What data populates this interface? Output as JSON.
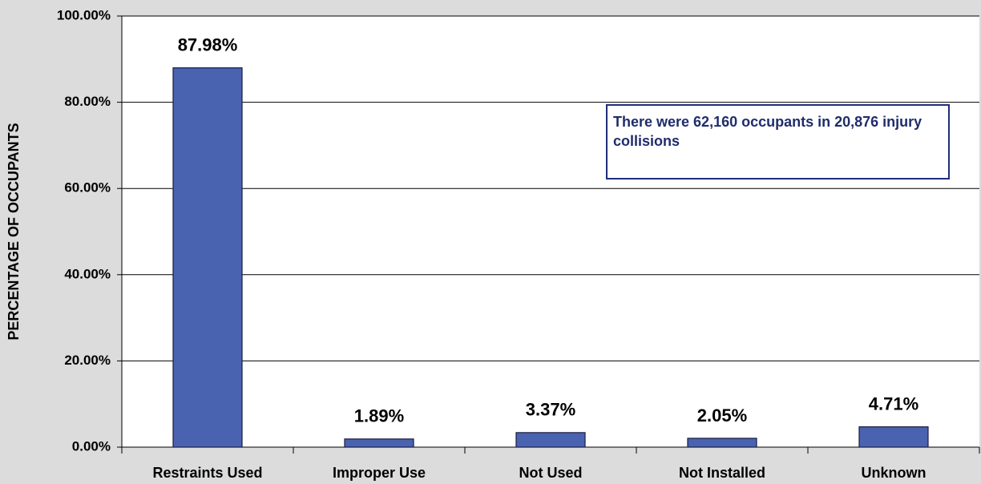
{
  "chart_data": {
    "type": "bar",
    "ylabel": "PERCENTAGE OF OCCUPANTS",
    "categories": [
      "Restraints Used",
      "Improper Use",
      "Not Used",
      "Not Installed",
      "Unknown"
    ],
    "values": [
      87.98,
      1.89,
      3.37,
      2.05,
      4.71
    ],
    "value_labels": [
      "87.98%",
      "1.89%",
      "3.37%",
      "2.05%",
      "4.71%"
    ],
    "color": "#4a63b0",
    "ylim": [
      0,
      100
    ],
    "yticks": [
      {
        "value": 0,
        "label": "0.00%"
      },
      {
        "value": 20,
        "label": "20.00%"
      },
      {
        "value": 40,
        "label": "40.00%"
      },
      {
        "value": 60,
        "label": "60.00%"
      },
      {
        "value": 80,
        "label": "80.00%"
      },
      {
        "value": 100,
        "label": "100.00%"
      }
    ],
    "grid": true,
    "annotation": "There were 62,160 occupants in 20,876 injury collisions"
  }
}
